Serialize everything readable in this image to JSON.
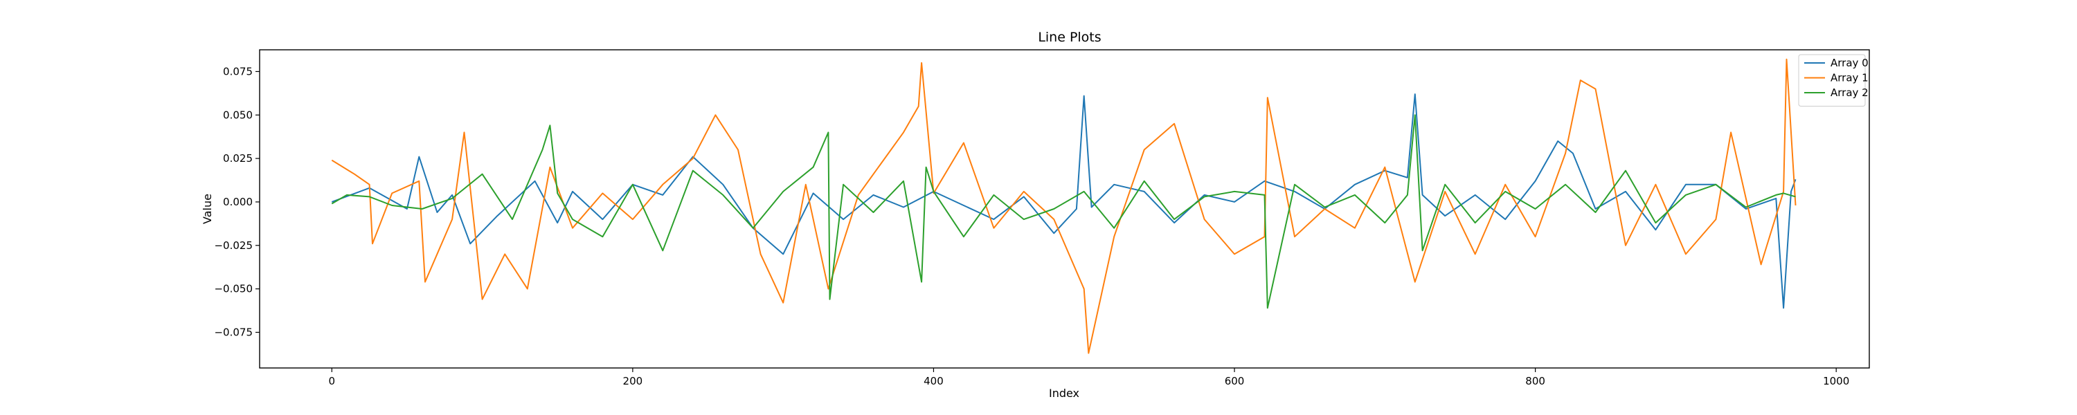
{
  "chart_data": {
    "type": "line",
    "title": "Line Plots",
    "xlabel": "Index",
    "ylabel": "Value",
    "xlim": [
      -48,
      1022
    ],
    "ylim": [
      -0.0955,
      0.0875
    ],
    "xticks": [
      0,
      200,
      400,
      600,
      800,
      1000
    ],
    "xtick_labels": [
      "0",
      "200",
      "400",
      "600",
      "800",
      "1000"
    ],
    "yticks": [
      -0.075,
      -0.05,
      -0.025,
      0.0,
      0.025,
      0.05,
      0.075
    ],
    "ytick_labels": [
      "−0.075",
      "−0.050",
      "−0.025",
      "0.000",
      "0.025",
      "0.050",
      "0.075"
    ],
    "grid": false,
    "legend_position": "top-right",
    "series": [
      {
        "name": "Array 0",
        "color": "#1f77b4",
        "x": [
          0,
          25,
          50,
          58,
          70,
          80,
          92,
          110,
          135,
          150,
          160,
          180,
          200,
          220,
          240,
          260,
          280,
          300,
          320,
          340,
          360,
          380,
          400,
          420,
          440,
          460,
          480,
          495,
          500,
          505,
          520,
          540,
          560,
          580,
          600,
          620,
          640,
          660,
          680,
          700,
          715,
          720,
          725,
          740,
          760,
          780,
          800,
          815,
          825,
          840,
          860,
          880,
          900,
          920,
          940,
          960,
          965,
          970,
          973
        ],
        "values": [
          0.0,
          0.008,
          -0.004,
          0.026,
          -0.006,
          0.004,
          -0.024,
          -0.008,
          0.012,
          -0.012,
          0.006,
          -0.01,
          0.01,
          0.004,
          0.026,
          0.01,
          -0.015,
          -0.03,
          0.005,
          -0.01,
          0.004,
          -0.003,
          0.006,
          -0.002,
          -0.01,
          0.003,
          -0.018,
          -0.004,
          0.061,
          -0.003,
          0.01,
          0.006,
          -0.012,
          0.004,
          0.0,
          0.012,
          0.006,
          -0.004,
          0.01,
          0.018,
          0.014,
          0.062,
          0.004,
          -0.008,
          0.004,
          -0.01,
          0.012,
          0.035,
          0.028,
          -0.004,
          0.006,
          -0.016,
          0.01,
          0.01,
          -0.004,
          0.002,
          -0.061,
          0.006,
          0.013
        ]
      },
      {
        "name": "Array 1",
        "color": "#ff7f0e",
        "x": [
          0,
          15,
          25,
          27,
          40,
          58,
          62,
          80,
          88,
          100,
          115,
          130,
          145,
          160,
          180,
          200,
          220,
          240,
          255,
          270,
          285,
          300,
          315,
          330,
          350,
          380,
          390,
          392,
          400,
          420,
          440,
          460,
          480,
          500,
          503,
          520,
          540,
          560,
          580,
          600,
          620,
          622,
          640,
          660,
          680,
          700,
          720,
          740,
          760,
          780,
          800,
          820,
          830,
          840,
          860,
          880,
          900,
          920,
          930,
          950,
          965,
          967,
          973
        ],
        "values": [
          0.024,
          0.016,
          0.01,
          -0.024,
          0.005,
          0.012,
          -0.046,
          -0.01,
          0.04,
          -0.056,
          -0.03,
          -0.05,
          0.02,
          -0.015,
          0.005,
          -0.01,
          0.01,
          0.025,
          0.05,
          0.03,
          -0.03,
          -0.058,
          0.01,
          -0.05,
          0.004,
          0.04,
          0.055,
          0.08,
          0.005,
          0.034,
          -0.015,
          0.006,
          -0.01,
          -0.05,
          -0.087,
          -0.02,
          0.03,
          0.045,
          -0.01,
          -0.03,
          -0.02,
          0.06,
          -0.02,
          -0.004,
          -0.015,
          0.02,
          -0.046,
          0.006,
          -0.03,
          0.01,
          -0.02,
          0.028,
          0.07,
          0.065,
          -0.025,
          0.01,
          -0.03,
          -0.01,
          0.04,
          -0.036,
          0.006,
          0.082,
          -0.002
        ]
      },
      {
        "name": "Array 2",
        "color": "#2ca02c",
        "x": [
          0,
          10,
          25,
          40,
          60,
          80,
          100,
          120,
          140,
          145,
          150,
          160,
          180,
          200,
          220,
          240,
          260,
          280,
          300,
          320,
          330,
          331,
          340,
          360,
          380,
          392,
          395,
          400,
          420,
          440,
          460,
          480,
          500,
          520,
          540,
          560,
          580,
          600,
          620,
          622,
          640,
          660,
          680,
          700,
          715,
          720,
          725,
          740,
          760,
          780,
          800,
          820,
          840,
          860,
          880,
          900,
          920,
          940,
          960,
          965,
          973
        ],
        "values": [
          -0.001,
          0.004,
          0.003,
          -0.002,
          -0.004,
          0.002,
          0.016,
          -0.01,
          0.03,
          0.044,
          0.005,
          -0.01,
          -0.02,
          0.01,
          -0.028,
          0.018,
          0.004,
          -0.015,
          0.006,
          0.02,
          0.04,
          -0.056,
          0.01,
          -0.006,
          0.012,
          -0.046,
          0.02,
          0.006,
          -0.02,
          0.004,
          -0.01,
          -0.004,
          0.006,
          -0.015,
          0.012,
          -0.01,
          0.003,
          0.006,
          0.004,
          -0.061,
          0.01,
          -0.003,
          0.004,
          -0.012,
          0.004,
          0.05,
          -0.028,
          0.01,
          -0.012,
          0.006,
          -0.004,
          0.01,
          -0.006,
          0.018,
          -0.012,
          0.004,
          0.01,
          -0.003,
          0.004,
          0.005,
          0.003
        ]
      }
    ]
  }
}
